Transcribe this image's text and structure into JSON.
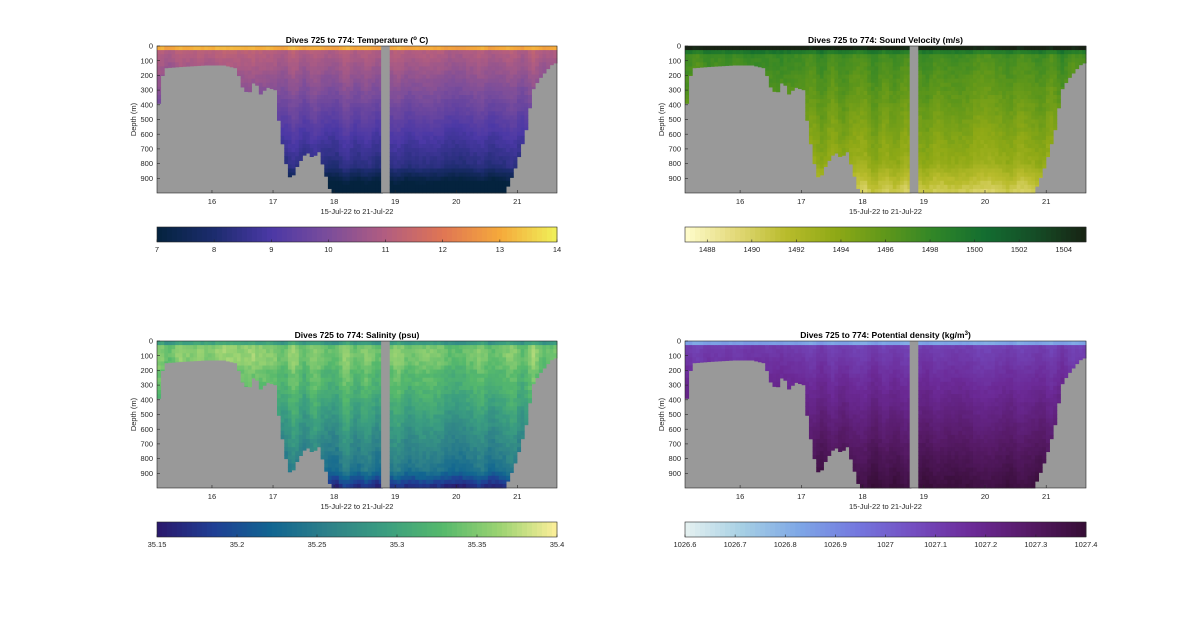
{
  "chart_data": [
    {
      "type": "heatmap",
      "title": "Dives 725 to 774: Temperature (° C)",
      "title_parts": [
        "Dives 725 to 774: Temperature (",
        "o",
        " C)"
      ],
      "xlabel": "15-Jul-22 to 21-Jul-22",
      "ylabel": "Depth (m)",
      "xlim": [
        15.1,
        21.65
      ],
      "ylim": [
        1000,
        0
      ],
      "xticks": [
        16,
        17,
        18,
        19,
        20,
        21
      ],
      "yticks": [
        0,
        100,
        200,
        300,
        400,
        500,
        600,
        700,
        800,
        900
      ],
      "colorbar": {
        "min": 7,
        "max": 14,
        "ticks": [
          7,
          8,
          9,
          10,
          11,
          12,
          13,
          14
        ],
        "colormap": "thermal",
        "colors": [
          "#04233e",
          "#1c2c6e",
          "#4b38a6",
          "#7b4d9b",
          "#b25d80",
          "#e07554",
          "#f5a93b",
          "#f0f159"
        ]
      },
      "no_data_color": "#999999",
      "data_gap": [
        18.77,
        18.9
      ],
      "variable": "temperature"
    },
    {
      "type": "heatmap",
      "title": "Dives 725 to 774: Sound Velocity (m/s)",
      "title_parts": [
        "Dives 725 to 774: Sound Velocity (m/s)"
      ],
      "xlabel": "15-Jul-22 to 21-Jul-22",
      "ylabel": "Depth (m)",
      "xlim": [
        15.1,
        21.65
      ],
      "ylim": [
        1000,
        0
      ],
      "xticks": [
        16,
        17,
        18,
        19,
        20,
        21
      ],
      "yticks": [
        0,
        100,
        200,
        300,
        400,
        500,
        600,
        700,
        800,
        900
      ],
      "colorbar": {
        "min": 1487,
        "max": 1505,
        "ticks": [
          1488,
          1490,
          1492,
          1494,
          1496,
          1498,
          1500,
          1502,
          1504
        ],
        "colormap": "speed",
        "colors": [
          "#fffdcd",
          "#e3d97a",
          "#b9bc2c",
          "#8fa916",
          "#5f971a",
          "#2f8528",
          "#136d30",
          "#154c26",
          "#172313"
        ]
      },
      "no_data_color": "#999999",
      "data_gap": [
        18.77,
        18.9
      ],
      "variable": "sound_velocity"
    },
    {
      "type": "heatmap",
      "title": "Dives 725 to 774: Salinity (psu)",
      "title_parts": [
        "Dives 725 to 774: Salinity (psu)"
      ],
      "xlabel": "15-Jul-22 to 21-Jul-22",
      "ylabel": "Depth (m)",
      "xlim": [
        15.1,
        21.65
      ],
      "ylim": [
        1000,
        0
      ],
      "xticks": [
        16,
        17,
        18,
        19,
        20,
        21
      ],
      "yticks": [
        0,
        100,
        200,
        300,
        400,
        500,
        600,
        700,
        800,
        900
      ],
      "colorbar": {
        "min": 35.15,
        "max": 35.4,
        "ticks": [
          "35.15",
          "35.2",
          "35.25",
          "35.3",
          "35.35",
          "35.4"
        ],
        "colormap": "haline",
        "colors": [
          "#2a186c",
          "#1f3f94",
          "#116591",
          "#2e8189",
          "#3b9e80",
          "#56b96c",
          "#9cd372",
          "#fdef9a"
        ]
      },
      "no_data_color": "#999999",
      "data_gap": [
        18.77,
        18.9
      ],
      "variable": "salinity"
    },
    {
      "type": "heatmap",
      "title": "Dives 725 to 774: Potential density (kg/m3)",
      "title_parts": [
        "Dives 725 to 774: Potential density (kg/m",
        "3",
        ")"
      ],
      "xlabel": "15-Jul-22 to 21-Jul-22",
      "ylabel": "Depth (m)",
      "xlim": [
        15.1,
        21.65
      ],
      "ylim": [
        1000,
        0
      ],
      "xticks": [
        16,
        17,
        18,
        19,
        20,
        21
      ],
      "yticks": [
        0,
        100,
        200,
        300,
        400,
        500,
        600,
        700,
        800,
        900
      ],
      "colorbar": {
        "min": 1026.6,
        "max": 1027.4,
        "ticks": [
          "1026.6",
          "1026.7",
          "1026.8",
          "1026.9",
          "1027",
          "1027.1",
          "1027.2",
          "1027.3",
          "1027.4"
        ],
        "colormap": "dense",
        "colors": [
          "#e6f1f1",
          "#a6cfe4",
          "#7ea7e6",
          "#7478df",
          "#744dc0",
          "#6c2a98",
          "#561a66",
          "#360d35"
        ]
      },
      "no_data_color": "#999999",
      "data_gap": [
        18.77,
        18.9
      ],
      "variable": "density"
    }
  ]
}
